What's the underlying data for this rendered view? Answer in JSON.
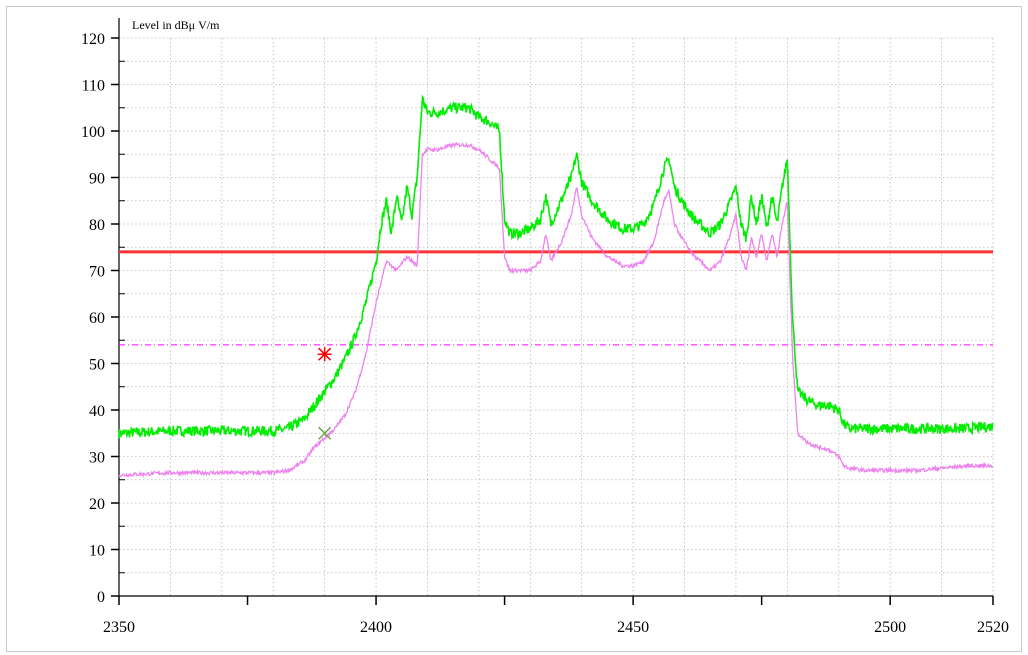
{
  "chart_data": {
    "type": "line",
    "title": "",
    "ylabel": "Level in dBμ  V/m",
    "xlabel": "",
    "xlim": [
      2350,
      2520
    ],
    "ylim": [
      0,
      120
    ],
    "x_tick_labels": [
      "2350",
      "2400",
      "2450",
      "2500",
      "2520"
    ],
    "x_ticks": [
      2350,
      2400,
      2450,
      2500,
      2520
    ],
    "x_minor_ticks": [
      2375,
      2425,
      2475
    ],
    "y_tick_labels": [
      "0",
      "10",
      "20",
      "30",
      "40",
      "50",
      "60",
      "70",
      "80",
      "90",
      "100",
      "110",
      "120"
    ],
    "y_ticks": [
      0,
      10,
      20,
      30,
      40,
      50,
      60,
      70,
      80,
      90,
      100,
      110,
      120
    ],
    "grid": true,
    "limit_lines": [
      {
        "value": 74,
        "color": "#ff3333",
        "style": "solid"
      },
      {
        "value": 54,
        "color": "#ff00ff",
        "style": "dashdot"
      }
    ],
    "markers": [
      {
        "x": 2390,
        "y": 52,
        "symbol": "asterisk",
        "color": "#ff0000"
      },
      {
        "x": 2390,
        "y": 35,
        "symbol": "cross",
        "color": "#6aa84f"
      }
    ],
    "series": [
      {
        "color": "#00ee00",
        "x": [
          2350,
          2360,
          2370,
          2380,
          2383,
          2386,
          2388,
          2390,
          2392,
          2394,
          2396,
          2398,
          2400,
          2401,
          2402,
          2403,
          2404,
          2405,
          2406,
          2407,
          2408,
          2409,
          2410,
          2412,
          2415,
          2418,
          2420,
          2422,
          2424,
          2425,
          2426,
          2428,
          2430,
          2432,
          2433,
          2434,
          2436,
          2438,
          2439,
          2440,
          2442,
          2445,
          2448,
          2450,
          2452,
          2454,
          2456,
          2457,
          2458,
          2460,
          2462,
          2465,
          2467,
          2469,
          2470,
          2471,
          2472,
          2473,
          2474,
          2475,
          2476,
          2477,
          2478,
          2479,
          2480,
          2481,
          2482,
          2484,
          2486,
          2488,
          2490,
          2491,
          2492,
          2495,
          2500,
          2505,
          2510,
          2515,
          2520
        ],
        "y": [
          35,
          35.5,
          35.5,
          35.5,
          36,
          38,
          41,
          44,
          47,
          51,
          56,
          63,
          72,
          80,
          85,
          78,
          86,
          80,
          88,
          82,
          90,
          107,
          104,
          104,
          105,
          105,
          103,
          102,
          100,
          81,
          78,
          78,
          79,
          81,
          86,
          80,
          85,
          90,
          95,
          89,
          85,
          81,
          79,
          79,
          80,
          84,
          92,
          94,
          88,
          84,
          81,
          78,
          80,
          85,
          88,
          80,
          77,
          86,
          80,
          86,
          79,
          86,
          80,
          88,
          94,
          60,
          44,
          42,
          41,
          41,
          40,
          37,
          36,
          36,
          36,
          36,
          36,
          36,
          36.5
        ]
      },
      {
        "color": "#ee82ee",
        "x": [
          2350,
          2360,
          2370,
          2380,
          2383,
          2386,
          2388,
          2390,
          2392,
          2394,
          2396,
          2398,
          2400,
          2402,
          2404,
          2406,
          2408,
          2409,
          2410,
          2412,
          2415,
          2418,
          2420,
          2422,
          2424,
          2425,
          2426,
          2428,
          2430,
          2432,
          2433,
          2434,
          2436,
          2438,
          2439,
          2440,
          2442,
          2445,
          2448,
          2450,
          2452,
          2454,
          2456,
          2457,
          2458,
          2460,
          2462,
          2465,
          2467,
          2469,
          2470,
          2471,
          2472,
          2473,
          2474,
          2475,
          2476,
          2477,
          2478,
          2479,
          2480,
          2481,
          2482,
          2484,
          2486,
          2488,
          2490,
          2491,
          2492,
          2495,
          2500,
          2505,
          2510,
          2515,
          2520
        ],
        "y": [
          26,
          26.5,
          26.5,
          26.5,
          27,
          29,
          32,
          34,
          36,
          39,
          44,
          52,
          63,
          72,
          70,
          73,
          71,
          95,
          96,
          96,
          97,
          97,
          96,
          94,
          92,
          73,
          70,
          70,
          70,
          72,
          78,
          72,
          76,
          82,
          88,
          82,
          77,
          73,
          71,
          71,
          72,
          76,
          85,
          87,
          80,
          76,
          73,
          70,
          72,
          78,
          82,
          73,
          70,
          77,
          73,
          78,
          72,
          78,
          73,
          80,
          85,
          52,
          35,
          33,
          32,
          31.5,
          30,
          28,
          27.5,
          27,
          27,
          27,
          27.5,
          28,
          28
        ]
      }
    ]
  }
}
